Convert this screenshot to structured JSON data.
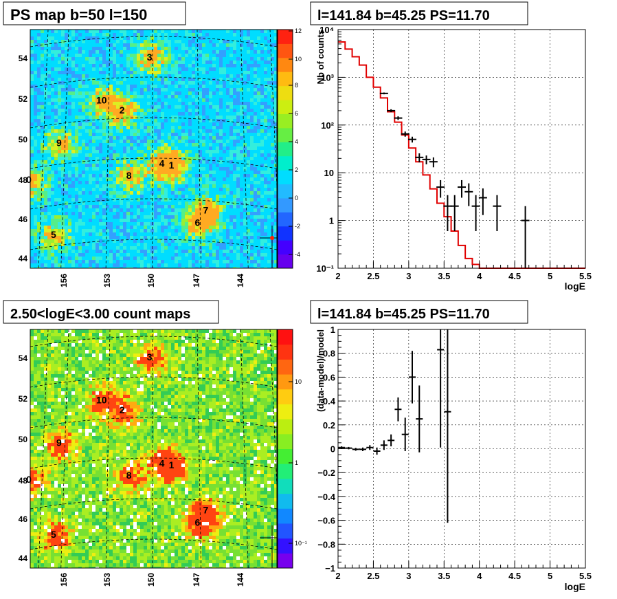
{
  "panels": {
    "tl": {
      "title": "PS map b=50 l=150",
      "y_ticks": [
        "44",
        "46",
        "48",
        "50",
        "52",
        "54"
      ],
      "x_ticks": [
        "156",
        "153",
        "150",
        "147",
        "144"
      ],
      "palette_ticks": [
        "-4",
        "-2",
        "0",
        "2",
        "4",
        "6",
        "8",
        "10",
        "12"
      ],
      "source_labels": [
        "0",
        "1",
        "2",
        "3",
        "4",
        "5",
        "6",
        "7",
        "8",
        "9",
        "10"
      ]
    },
    "bl": {
      "title": "2.50<logE<3.00 count maps",
      "y_ticks": [
        "44",
        "46",
        "48",
        "50",
        "52",
        "54"
      ],
      "x_ticks": [
        "156",
        "153",
        "150",
        "147",
        "144"
      ],
      "palette_ticks": [
        "10⁻¹",
        "1",
        "10"
      ],
      "source_labels": [
        "0",
        "1",
        "2",
        "3",
        "4",
        "5",
        "6",
        "7",
        "8",
        "9",
        "10"
      ]
    }
  },
  "chart_data": [
    {
      "type": "heatmap",
      "title": "PS map b=50 l=150",
      "xlabel": "",
      "ylabel": "",
      "x_ticks": [
        156,
        153,
        150,
        147,
        144
      ],
      "y_ticks": [
        44,
        46,
        48,
        50,
        52,
        54
      ],
      "color_scale": {
        "min": -5,
        "max": 12,
        "ticks": [
          -4,
          -2,
          0,
          2,
          4,
          6,
          8,
          10,
          12
        ]
      },
      "dominant_color": "#00e5ff",
      "sources": [
        {
          "label": "0",
          "lon": 158.6,
          "lat": 48.0
        },
        {
          "label": "1",
          "lon": 148.2,
          "lat": 48.7
        },
        {
          "label": "2",
          "lon": 151.8,
          "lat": 51.4
        },
        {
          "label": "3",
          "lon": 149.8,
          "lat": 54.0
        },
        {
          "label": "4",
          "lon": 148.9,
          "lat": 48.8
        },
        {
          "label": "5",
          "lon": 156.8,
          "lat": 45.3
        },
        {
          "label": "6",
          "lon": 146.3,
          "lat": 45.9
        },
        {
          "label": "7",
          "lon": 145.7,
          "lat": 46.5
        },
        {
          "label": "8",
          "lon": 151.3,
          "lat": 48.2
        },
        {
          "label": "9",
          "lon": 156.4,
          "lat": 49.8
        },
        {
          "label": "10",
          "lon": 153.3,
          "lat": 51.9
        }
      ]
    },
    {
      "type": "line",
      "title": "l=141.84 b=45.25 PS=11.70",
      "xlabel": "logE",
      "ylabel": "Nb of counts",
      "xlim": [
        2,
        5.5
      ],
      "ylim": [
        0.1,
        10000
      ],
      "yscale": "log",
      "grid": true,
      "x_ticks": [
        "2",
        "2.5",
        "3",
        "3.5",
        "4",
        "4.5",
        "5",
        "5.5"
      ],
      "y_ticks": [
        "10⁻¹",
        "1",
        "10",
        "10²",
        "10³",
        "10⁴"
      ],
      "series": [
        {
          "name": "",
          "kind": "model_step",
          "color": "#e00000",
          "bins": [
            [
              2.0,
              2.1,
              5500
            ],
            [
              2.1,
              2.2,
              3900
            ],
            [
              2.2,
              2.3,
              2700
            ],
            [
              2.3,
              2.4,
              1800
            ],
            [
              2.4,
              2.5,
              1000
            ],
            [
              2.5,
              2.6,
              620
            ],
            [
              2.6,
              2.7,
              370
            ],
            [
              2.7,
              2.8,
              190
            ],
            [
              2.8,
              2.9,
              115
            ],
            [
              2.9,
              3.0,
              62
            ],
            [
              3.0,
              3.1,
              33
            ],
            [
              3.1,
              3.2,
              17
            ],
            [
              3.2,
              3.3,
              9
            ],
            [
              3.3,
              3.4,
              4.6
            ],
            [
              3.4,
              3.5,
              2.3
            ],
            [
              3.5,
              3.6,
              1.2
            ],
            [
              3.6,
              3.7,
              0.6
            ],
            [
              3.7,
              3.8,
              0.3
            ],
            [
              3.8,
              3.9,
              0.16
            ],
            [
              3.9,
              4.0,
              0.12
            ],
            [
              4.0,
              5.5,
              0.1
            ]
          ]
        },
        {
          "name": "",
          "kind": "data_points",
          "color": "#000000",
          "points": [
            {
              "x": 2.65,
              "y": 460,
              "lo": 440,
              "hi": 480
            },
            {
              "x": 2.75,
              "y": 200,
              "lo": 186,
              "hi": 214
            },
            {
              "x": 2.85,
              "y": 140,
              "lo": 128,
              "hi": 152
            },
            {
              "x": 2.95,
              "y": 65,
              "lo": 57,
              "hi": 73
            },
            {
              "x": 3.05,
              "y": 50,
              "lo": 43,
              "hi": 57
            },
            {
              "x": 3.15,
              "y": 21,
              "lo": 16.5,
              "hi": 25.5
            },
            {
              "x": 3.25,
              "y": 19,
              "lo": 15,
              "hi": 23
            },
            {
              "x": 3.35,
              "y": 17,
              "lo": 13,
              "hi": 21
            },
            {
              "x": 3.45,
              "y": 5,
              "lo": 3,
              "hi": 7
            },
            {
              "x": 3.55,
              "y": 2,
              "lo": 0.6,
              "hi": 3.4
            },
            {
              "x": 3.65,
              "y": 2,
              "lo": 0.6,
              "hi": 3.4
            },
            {
              "x": 3.75,
              "y": 5,
              "lo": 3,
              "hi": 7
            },
            {
              "x": 3.85,
              "y": 4,
              "lo": 2,
              "hi": 6
            },
            {
              "x": 3.95,
              "y": 2,
              "lo": 0.6,
              "hi": 3.4
            },
            {
              "x": 4.05,
              "y": 3,
              "lo": 1.3,
              "hi": 4.7
            },
            {
              "x": 4.25,
              "y": 2,
              "lo": 0.6,
              "hi": 3.4
            },
            {
              "x": 4.65,
              "y": 1,
              "lo": 0.1,
              "hi": 2
            }
          ]
        }
      ]
    },
    {
      "type": "heatmap",
      "title": "2.50<logE<3.00 count maps",
      "xlabel": "",
      "ylabel": "",
      "x_ticks": [
        156,
        153,
        150,
        147,
        144
      ],
      "y_ticks": [
        44,
        46,
        48,
        50,
        52,
        54
      ],
      "color_scale": {
        "scale": "log",
        "ticks": [
          "10⁻¹",
          "1",
          "10"
        ]
      },
      "dominant_color": "#88ee22",
      "sources": [
        {
          "label": "0",
          "lon": 158.6,
          "lat": 48.0
        },
        {
          "label": "1",
          "lon": 148.2,
          "lat": 48.7
        },
        {
          "label": "2",
          "lon": 151.8,
          "lat": 51.4
        },
        {
          "label": "3",
          "lon": 149.8,
          "lat": 54.0
        },
        {
          "label": "4",
          "lon": 148.9,
          "lat": 48.8
        },
        {
          "label": "5",
          "lon": 156.8,
          "lat": 45.3
        },
        {
          "label": "6",
          "lon": 146.3,
          "lat": 45.9
        },
        {
          "label": "7",
          "lon": 145.7,
          "lat": 46.5
        },
        {
          "label": "8",
          "lon": 151.3,
          "lat": 48.2
        },
        {
          "label": "9",
          "lon": 156.4,
          "lat": 49.8
        },
        {
          "label": "10",
          "lon": 153.3,
          "lat": 51.9
        }
      ]
    },
    {
      "type": "scatter",
      "title": "l=141.84 b=45.25 PS=11.70",
      "xlabel": "logE",
      "ylabel": "(data-model)/model",
      "xlim": [
        2,
        5.5
      ],
      "ylim": [
        -1,
        1
      ],
      "grid": true,
      "x_ticks": [
        "2",
        "2.5",
        "3",
        "3.5",
        "4",
        "4.5",
        "5",
        "5.5"
      ],
      "y_ticks": [
        "−1",
        "−0.8",
        "−0.6",
        "−0.4",
        "−0.2",
        "0",
        "0.2",
        "0.4",
        "0.6",
        "0.8",
        "1"
      ],
      "series": [
        {
          "name": "",
          "color": "#000000",
          "points": [
            {
              "x": 2.05,
              "y": 0.01,
              "lo": 0.0,
              "hi": 0.02
            },
            {
              "x": 2.15,
              "y": 0.005,
              "lo": -0.005,
              "hi": 0.015
            },
            {
              "x": 2.25,
              "y": -0.005,
              "lo": -0.017,
              "hi": 0.007
            },
            {
              "x": 2.35,
              "y": -0.005,
              "lo": -0.02,
              "hi": 0.01
            },
            {
              "x": 2.45,
              "y": 0.01,
              "lo": -0.01,
              "hi": 0.03
            },
            {
              "x": 2.55,
              "y": -0.02,
              "lo": -0.05,
              "hi": 0.01
            },
            {
              "x": 2.65,
              "y": 0.03,
              "lo": -0.01,
              "hi": 0.07
            },
            {
              "x": 2.75,
              "y": 0.07,
              "lo": 0.02,
              "hi": 0.12
            },
            {
              "x": 2.85,
              "y": 0.33,
              "lo": 0.23,
              "hi": 0.43
            },
            {
              "x": 2.95,
              "y": 0.12,
              "lo": -0.02,
              "hi": 0.26
            },
            {
              "x": 3.05,
              "y": 0.6,
              "lo": 0.38,
              "hi": 0.82
            },
            {
              "x": 3.15,
              "y": 0.25,
              "lo": -0.03,
              "hi": 0.53
            },
            {
              "x": 3.45,
              "y": 0.83,
              "lo": 0.01,
              "hi": 1.0
            },
            {
              "x": 3.55,
              "y": 0.31,
              "lo": -0.62,
              "hi": 1.0
            }
          ]
        }
      ]
    }
  ]
}
